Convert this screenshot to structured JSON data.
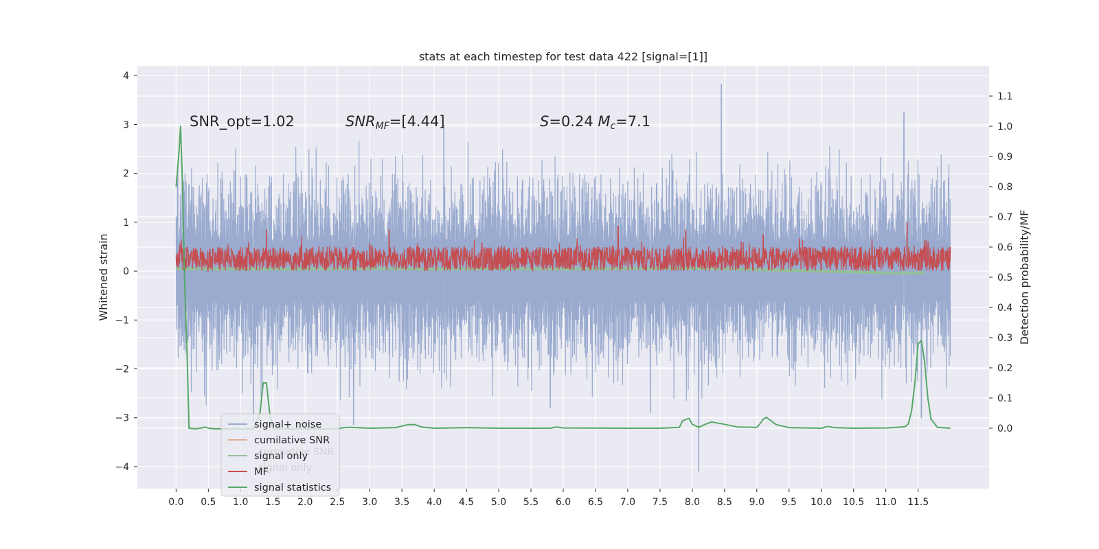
{
  "chart_data": {
    "type": "line",
    "title": "stats at each timestep for test data 422 [signal=[1]]",
    "xlabel": "",
    "ylabel": "Whitened strain",
    "ylabel_right": "Detection probability/MF",
    "xlim": [
      -0.6,
      12.6
    ],
    "ylim": [
      -4.45,
      4.2
    ],
    "ylim_right": [
      -0.2,
      1.2
    ],
    "x_ticks": [
      "0.0",
      "0.5",
      "1.0",
      "1.5",
      "2.0",
      "2.5",
      "3.0",
      "3.5",
      "4.0",
      "4.5",
      "5.0",
      "5.5",
      "6.0",
      "6.5",
      "7.0",
      "7.5",
      "8.0",
      "8.5",
      "9.0",
      "9.5",
      "10.0",
      "10.5",
      "11.0",
      "11.5"
    ],
    "y_ticks": [
      "4",
      "3",
      "2",
      "1",
      "0",
      "−1",
      "−2",
      "−3",
      "−4"
    ],
    "y_ticks_right": [
      "1.1",
      "1.0",
      "0.9",
      "0.8",
      "0.7",
      "0.6",
      "0.5",
      "0.4",
      "0.3",
      "0.2",
      "0.1",
      "0.0"
    ],
    "grid": true,
    "annotations": [
      {
        "parts": [
          {
            "t": "SNR_opt=1.02",
            "i": false
          }
        ]
      },
      {
        "parts": [
          {
            "t": "SNR",
            "i": true
          },
          {
            "t": "MF",
            "i": true,
            "sub": true
          },
          {
            "t": "=[4.44]",
            "i": false
          }
        ]
      },
      {
        "parts": [
          {
            "t": "S",
            "i": true
          },
          {
            "t": "=0.24   ",
            "i": false
          },
          {
            "t": "M",
            "i": true
          },
          {
            "t": "c",
            "i": true,
            "sub": true
          },
          {
            "t": "=7.1",
            "i": false
          }
        ]
      }
    ],
    "legend": {
      "placement": "lower-left",
      "entries": [
        {
          "label": "signal+ noise",
          "color": "#9aabcf"
        },
        {
          "label": "cumilative SNR",
          "color": "#e1ad93"
        },
        {
          "label": "signal only",
          "color": "#93c196"
        },
        {
          "label": "MF",
          "color": "#c44e52"
        },
        {
          "label": "signal statistics",
          "color": "#55a868"
        }
      ],
      "ghost_entries": [
        "cumilative SNR",
        "signal only"
      ]
    },
    "series": [
      {
        "name": "signal+ noise",
        "color": "#9aabcf",
        "axis": "left",
        "description": "dense whitened strain noise spanning x 0.0–12.0",
        "x_range": [
          0.0,
          12.0
        ],
        "typical_amplitude": 1.9,
        "peaks": [
          {
            "x": 8.45,
            "y": 3.83
          },
          {
            "x": 11.28,
            "y": 3.25
          },
          {
            "x": 4.15,
            "y": 3.0
          },
          {
            "x": 8.1,
            "y": -4.1
          },
          {
            "x": 2.75,
            "y": -3.15
          },
          {
            "x": 7.35,
            "y": -2.9
          },
          {
            "x": 11.55,
            "y": -3.0
          },
          {
            "x": 1.2,
            "y": -3.1
          },
          {
            "x": 5.8,
            "y": -2.8
          }
        ]
      },
      {
        "name": "signal only",
        "color": "#93c196",
        "axis": "left",
        "x": [
          0.0,
          1.0,
          2.0,
          3.0,
          4.0,
          5.0,
          6.0,
          7.0,
          8.0,
          9.0,
          10.0,
          10.8,
          11.2,
          11.6
        ],
        "y": [
          0.05,
          0.04,
          0.04,
          0.05,
          0.04,
          0.05,
          0.04,
          0.05,
          0.06,
          0.03,
          0.0,
          -0.03,
          -0.04,
          -0.03
        ]
      },
      {
        "name": "MF",
        "color": "#c44e52",
        "axis": "left",
        "description": "matched filter output oscillating roughly between 0.0 and 0.5",
        "x_range": [
          0.0,
          12.0
        ],
        "baseline": 0.25,
        "peaks": [
          {
            "x": 11.33,
            "y": 1.0
          },
          {
            "x": 6.85,
            "y": 0.92
          },
          {
            "x": 7.9,
            "y": 0.85
          },
          {
            "x": 1.4,
            "y": 0.85
          },
          {
            "x": 3.3,
            "y": 0.85
          },
          {
            "x": 9.1,
            "y": 0.75
          }
        ]
      },
      {
        "name": "signal statistics",
        "color": "#55a868",
        "axis": "right",
        "x": [
          0.0,
          0.04,
          0.07,
          0.1,
          0.13,
          0.17,
          0.2,
          0.3,
          0.4,
          0.45,
          0.5,
          0.6,
          1.0,
          1.2,
          1.3,
          1.35,
          1.4,
          1.45,
          1.5,
          2.0,
          2.5,
          2.6,
          2.7,
          3.0,
          3.4,
          3.6,
          3.7,
          3.8,
          4.0,
          4.5,
          5.0,
          5.5,
          5.8,
          5.9,
          6.0,
          7.0,
          7.5,
          7.8,
          7.85,
          7.95,
          8.0,
          8.1,
          8.2,
          8.3,
          8.5,
          8.7,
          9.0,
          9.05,
          9.1,
          9.15,
          9.2,
          9.3,
          9.5,
          10.0,
          10.1,
          10.2,
          10.5,
          11.0,
          11.1,
          11.3,
          11.35,
          11.4,
          11.45,
          11.5,
          11.55,
          11.6,
          11.65,
          11.7,
          11.8,
          12.0
        ],
        "y": [
          0.8,
          0.9,
          1.0,
          0.8,
          0.5,
          0.25,
          0.0,
          -0.002,
          0.001,
          0.004,
          0.0,
          -0.002,
          -0.002,
          -0.002,
          0.05,
          0.15,
          0.15,
          0.05,
          -0.002,
          -0.002,
          -0.002,
          0.002,
          0.003,
          0.0,
          0.002,
          0.012,
          0.012,
          0.004,
          0.0,
          0.002,
          0.0,
          0.0,
          0.0,
          0.004,
          0.001,
          0.0,
          0.0,
          0.003,
          0.025,
          0.033,
          0.013,
          0.003,
          0.013,
          0.021,
          0.013,
          0.004,
          0.003,
          0.015,
          0.03,
          0.036,
          0.028,
          0.012,
          0.002,
          0.0,
          0.006,
          0.002,
          0.0,
          0.001,
          0.002,
          0.005,
          0.015,
          0.06,
          0.15,
          0.28,
          0.29,
          0.22,
          0.1,
          0.03,
          0.003,
          0.0
        ]
      }
    ]
  }
}
